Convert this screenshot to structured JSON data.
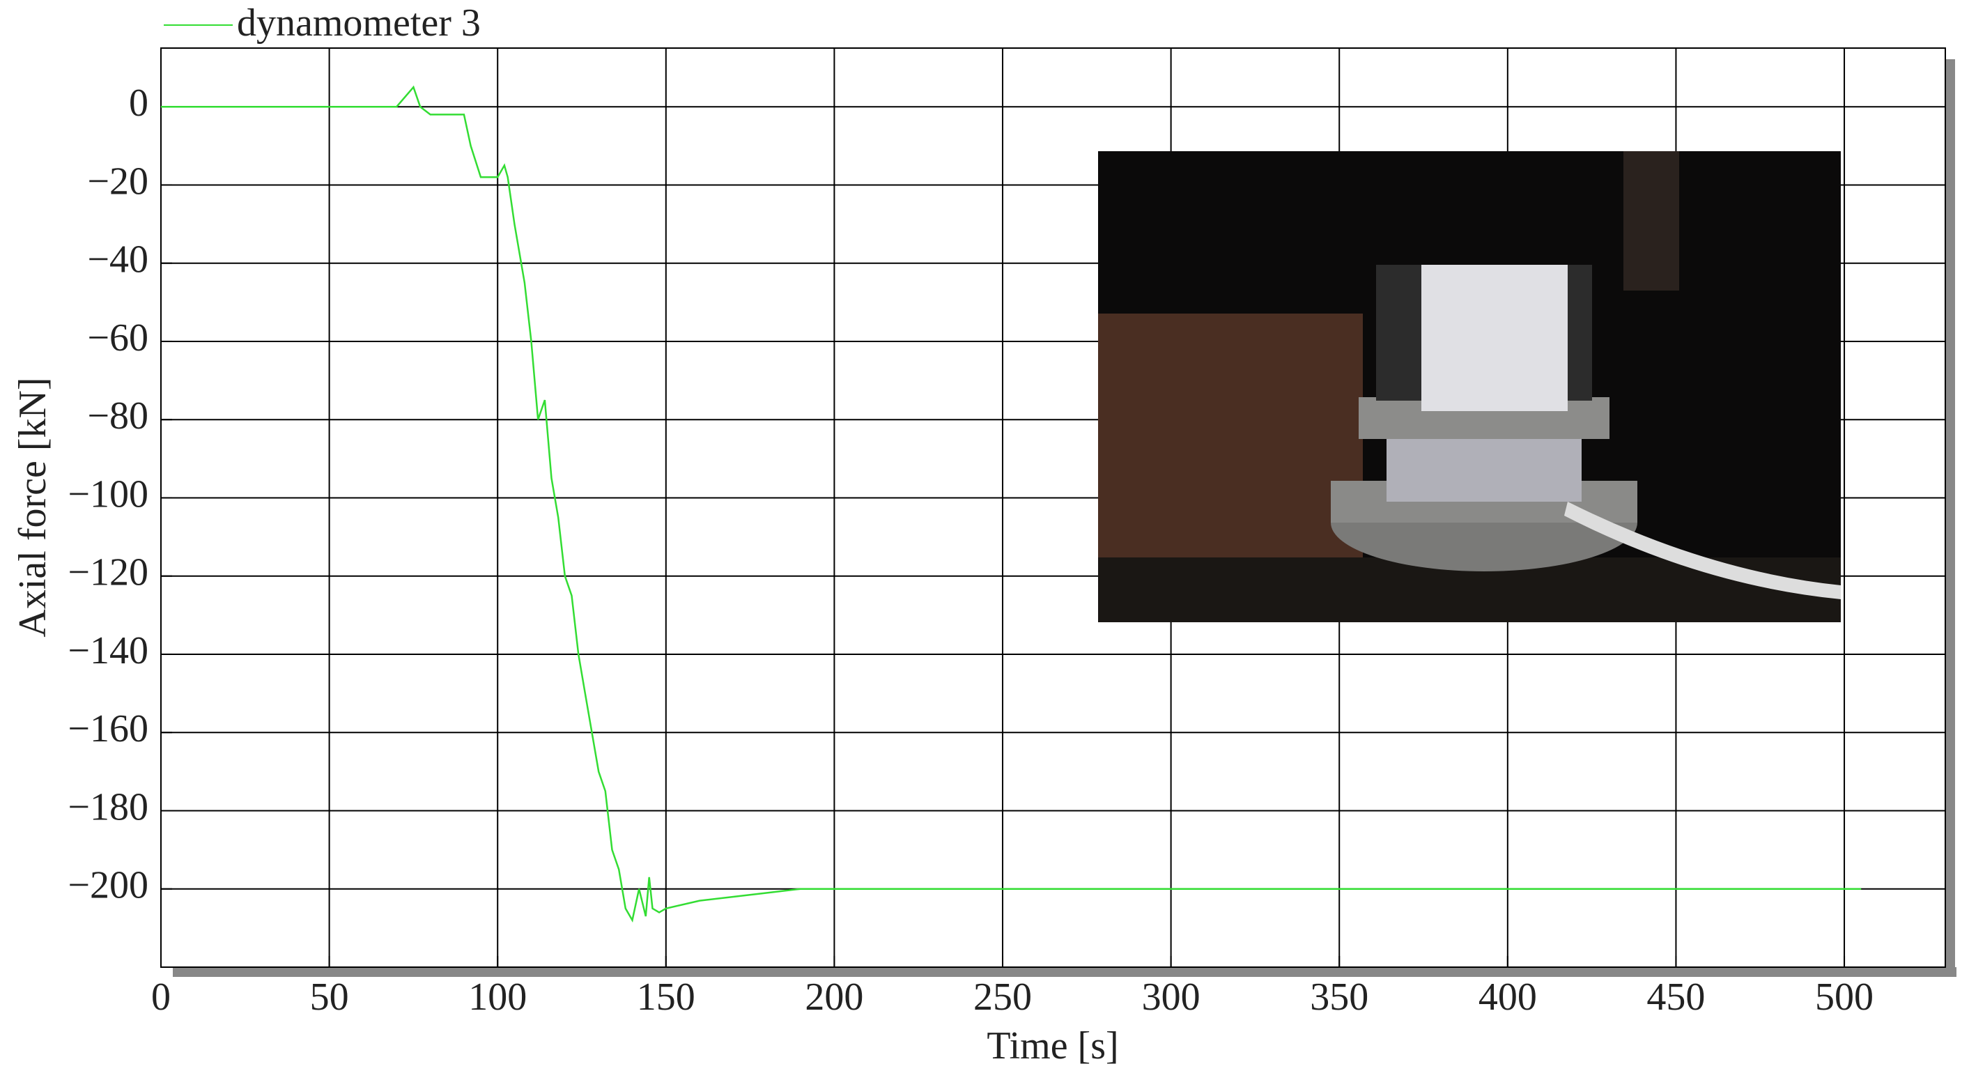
{
  "chart_data": {
    "type": "line",
    "x_label": "Time [s]",
    "y_label": "Axial force [kN]",
    "x": [
      0,
      70,
      75,
      77,
      80,
      90,
      92,
      95,
      98,
      100,
      102,
      103,
      105,
      108,
      110,
      112,
      114,
      116,
      118,
      120,
      122,
      124,
      126,
      128,
      130,
      132,
      134,
      136,
      138,
      140,
      142,
      144,
      145,
      146,
      148,
      150,
      160,
      170,
      180,
      190,
      200,
      300,
      400,
      505
    ],
    "series": [
      {
        "name": "dynamometer 3",
        "color": "#33dd33",
        "values": [
          0,
          0,
          5,
          0,
          -2,
          -2,
          -10,
          -18,
          -18,
          -18,
          -15,
          -18,
          -30,
          -45,
          -60,
          -80,
          -75,
          -95,
          -105,
          -120,
          -125,
          -140,
          -150,
          -160,
          -170,
          -175,
          -190,
          -195,
          -205,
          -208,
          -200,
          -207,
          -197,
          -205,
          -206,
          -205,
          -203,
          -202,
          -201,
          -200,
          -200,
          -200,
          -200,
          -200
        ]
      }
    ],
    "xlim": [
      0,
      530
    ],
    "ylim": [
      -220,
      15
    ],
    "xticks": [
      0,
      50,
      100,
      150,
      200,
      250,
      300,
      350,
      400,
      450,
      500
    ],
    "yticks": [
      0,
      {
        "value": -20,
        "label": "−20"
      },
      {
        "value": -40,
        "label": "−40"
      },
      {
        "value": -60,
        "label": "−60"
      },
      {
        "value": -80,
        "label": "−80"
      },
      {
        "value": -100,
        "label": "−100"
      },
      {
        "value": -120,
        "label": "−120"
      },
      {
        "value": -140,
        "label": "−140"
      },
      {
        "value": -160,
        "label": "−160"
      },
      {
        "value": -180,
        "label": "−180"
      },
      {
        "value": -200,
        "label": "−200"
      }
    ],
    "grid": true,
    "legend": "top-left"
  }
}
